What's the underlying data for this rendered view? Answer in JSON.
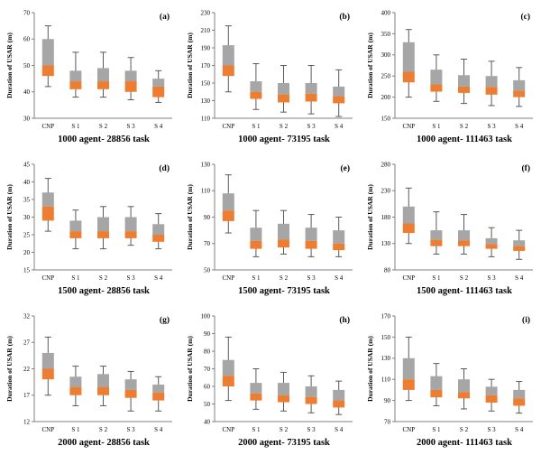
{
  "ylabel": "Duration of USAR (m)",
  "categories": [
    "CNP",
    "S 1",
    "S 2",
    "S 3",
    "S 4"
  ],
  "colors": {
    "upper_box": "#a6a6a6",
    "lower_box": "#ed7d31",
    "whisker": "#595959",
    "axis": "#808080"
  },
  "chart_data": [
    {
      "type": "box",
      "label": "(a)",
      "caption": "1000 agent- 28856 task",
      "ylim": [
        30,
        70
      ],
      "ystep": 10,
      "series": [
        {
          "category": "CNP",
          "low": 42,
          "q1": 46,
          "median": 50,
          "q3": 60,
          "high": 65
        },
        {
          "category": "S 1",
          "low": 38,
          "q1": 41,
          "median": 44,
          "q3": 48,
          "high": 55
        },
        {
          "category": "S 2",
          "low": 38,
          "q1": 41,
          "median": 44,
          "q3": 49,
          "high": 55
        },
        {
          "category": "S 3",
          "low": 37,
          "q1": 40,
          "median": 44,
          "q3": 48,
          "high": 53
        },
        {
          "category": "S 4",
          "low": 36,
          "q1": 38,
          "median": 42,
          "q3": 45,
          "high": 48
        }
      ]
    },
    {
      "type": "box",
      "label": "(b)",
      "caption": "1000 agent- 73195 task",
      "ylim": [
        110,
        230
      ],
      "ystep": 20,
      "series": [
        {
          "category": "CNP",
          "low": 140,
          "q1": 158,
          "median": 170,
          "q3": 193,
          "high": 215
        },
        {
          "category": "S 1",
          "low": 120,
          "q1": 132,
          "median": 140,
          "q3": 152,
          "high": 172
        },
        {
          "category": "S 2",
          "low": 117,
          "q1": 128,
          "median": 137,
          "q3": 150,
          "high": 170
        },
        {
          "category": "S 3",
          "low": 115,
          "q1": 129,
          "median": 138,
          "q3": 150,
          "high": 170
        },
        {
          "category": "S 4",
          "low": 112,
          "q1": 127,
          "median": 135,
          "q3": 146,
          "high": 165
        }
      ]
    },
    {
      "type": "box",
      "label": "(c)",
      "caption": "1000 agent- 111463 task",
      "ylim": [
        150,
        400
      ],
      "ystep": 50,
      "series": [
        {
          "category": "CNP",
          "low": 200,
          "q1": 235,
          "median": 260,
          "q3": 330,
          "high": 360
        },
        {
          "category": "S 1",
          "low": 190,
          "q1": 213,
          "median": 230,
          "q3": 265,
          "high": 300
        },
        {
          "category": "S 2",
          "low": 185,
          "q1": 210,
          "median": 225,
          "q3": 252,
          "high": 290
        },
        {
          "category": "S 3",
          "low": 180,
          "q1": 206,
          "median": 224,
          "q3": 250,
          "high": 285
        },
        {
          "category": "S 4",
          "low": 178,
          "q1": 200,
          "median": 215,
          "q3": 240,
          "high": 270
        }
      ]
    },
    {
      "type": "box",
      "label": "(d)",
      "caption": "1500 agent- 28856 task",
      "ylim": [
        15,
        45
      ],
      "ystep": 5,
      "series": [
        {
          "category": "CNP",
          "low": 26,
          "q1": 29,
          "median": 33,
          "q3": 37,
          "high": 41
        },
        {
          "category": "S 1",
          "low": 21,
          "q1": 24,
          "median": 26,
          "q3": 29,
          "high": 32
        },
        {
          "category": "S 2",
          "low": 21,
          "q1": 24,
          "median": 26,
          "q3": 30,
          "high": 33
        },
        {
          "category": "S 3",
          "low": 22,
          "q1": 24,
          "median": 26,
          "q3": 30,
          "high": 33
        },
        {
          "category": "S 4",
          "low": 21,
          "q1": 23,
          "median": 25,
          "q3": 28,
          "high": 31
        }
      ]
    },
    {
      "type": "box",
      "label": "(e)",
      "caption": "1500 agent- 73195 task",
      "ylim": [
        50,
        130
      ],
      "ystep": 20,
      "series": [
        {
          "category": "CNP",
          "low": 78,
          "q1": 87,
          "median": 95,
          "q3": 108,
          "high": 122
        },
        {
          "category": "S 1",
          "low": 60,
          "q1": 66,
          "median": 72,
          "q3": 82,
          "high": 95
        },
        {
          "category": "S 2",
          "low": 62,
          "q1": 67,
          "median": 73,
          "q3": 85,
          "high": 95
        },
        {
          "category": "S 3",
          "low": 60,
          "q1": 66,
          "median": 72,
          "q3": 82,
          "high": 92
        },
        {
          "category": "S 4",
          "low": 60,
          "q1": 65,
          "median": 70,
          "q3": 80,
          "high": 90
        }
      ]
    },
    {
      "type": "box",
      "label": "(f)",
      "caption": "1500 agent- 111463 task",
      "ylim": [
        80,
        280
      ],
      "ystep": 50,
      "series": [
        {
          "category": "CNP",
          "low": 130,
          "q1": 150,
          "median": 168,
          "q3": 200,
          "high": 235
        },
        {
          "category": "S 1",
          "low": 110,
          "q1": 125,
          "median": 137,
          "q3": 155,
          "high": 190
        },
        {
          "category": "S 2",
          "low": 110,
          "q1": 125,
          "median": 136,
          "q3": 155,
          "high": 185
        },
        {
          "category": "S 3",
          "low": 105,
          "q1": 120,
          "median": 129,
          "q3": 140,
          "high": 160
        },
        {
          "category": "S 4",
          "low": 100,
          "q1": 116,
          "median": 125,
          "q3": 136,
          "high": 155
        }
      ]
    },
    {
      "type": "box",
      "label": "(g)",
      "caption": "2000 agent- 28856 task",
      "ylim": [
        12,
        32
      ],
      "ystep": 5,
      "series": [
        {
          "category": "CNP",
          "low": 17,
          "q1": 20,
          "median": 22,
          "q3": 25,
          "high": 28
        },
        {
          "category": "S 1",
          "low": 15,
          "q1": 17,
          "median": 18.5,
          "q3": 20.5,
          "high": 22.5
        },
        {
          "category": "S 2",
          "low": 15,
          "q1": 17,
          "median": 18.5,
          "q3": 21,
          "high": 22.5
        },
        {
          "category": "S 3",
          "low": 14,
          "q1": 16.5,
          "median": 18,
          "q3": 20,
          "high": 21.5
        },
        {
          "category": "S 4",
          "low": 14,
          "q1": 16,
          "median": 17.5,
          "q3": 19,
          "high": 20.5
        }
      ]
    },
    {
      "type": "box",
      "label": "(h)",
      "caption": "2000 agent- 73195 task",
      "ylim": [
        40,
        100
      ],
      "ystep": 10,
      "series": [
        {
          "category": "CNP",
          "low": 52,
          "q1": 60,
          "median": 66,
          "q3": 75,
          "high": 88
        },
        {
          "category": "S 1",
          "low": 47,
          "q1": 52,
          "median": 56,
          "q3": 62,
          "high": 70
        },
        {
          "category": "S 2",
          "low": 46,
          "q1": 51,
          "median": 55,
          "q3": 62,
          "high": 68
        },
        {
          "category": "S 3",
          "low": 45,
          "q1": 50,
          "median": 54,
          "q3": 60,
          "high": 66
        },
        {
          "category": "S 4",
          "low": 44,
          "q1": 48,
          "median": 52,
          "q3": 58,
          "high": 63
        }
      ]
    },
    {
      "type": "box",
      "label": "(i)",
      "caption": "2000 agent- 111463 task",
      "ylim": [
        70,
        170
      ],
      "ystep": 20,
      "series": [
        {
          "category": "CNP",
          "low": 90,
          "q1": 100,
          "median": 110,
          "q3": 130,
          "high": 150
        },
        {
          "category": "S 1",
          "low": 85,
          "q1": 93,
          "median": 100,
          "q3": 113,
          "high": 125
        },
        {
          "category": "S 2",
          "low": 82,
          "q1": 92,
          "median": 98,
          "q3": 110,
          "high": 120
        },
        {
          "category": "S 3",
          "low": 80,
          "q1": 88,
          "median": 95,
          "q3": 103,
          "high": 110
        },
        {
          "category": "S 4",
          "low": 78,
          "q1": 85,
          "median": 92,
          "q3": 100,
          "high": 108
        }
      ]
    }
  ]
}
